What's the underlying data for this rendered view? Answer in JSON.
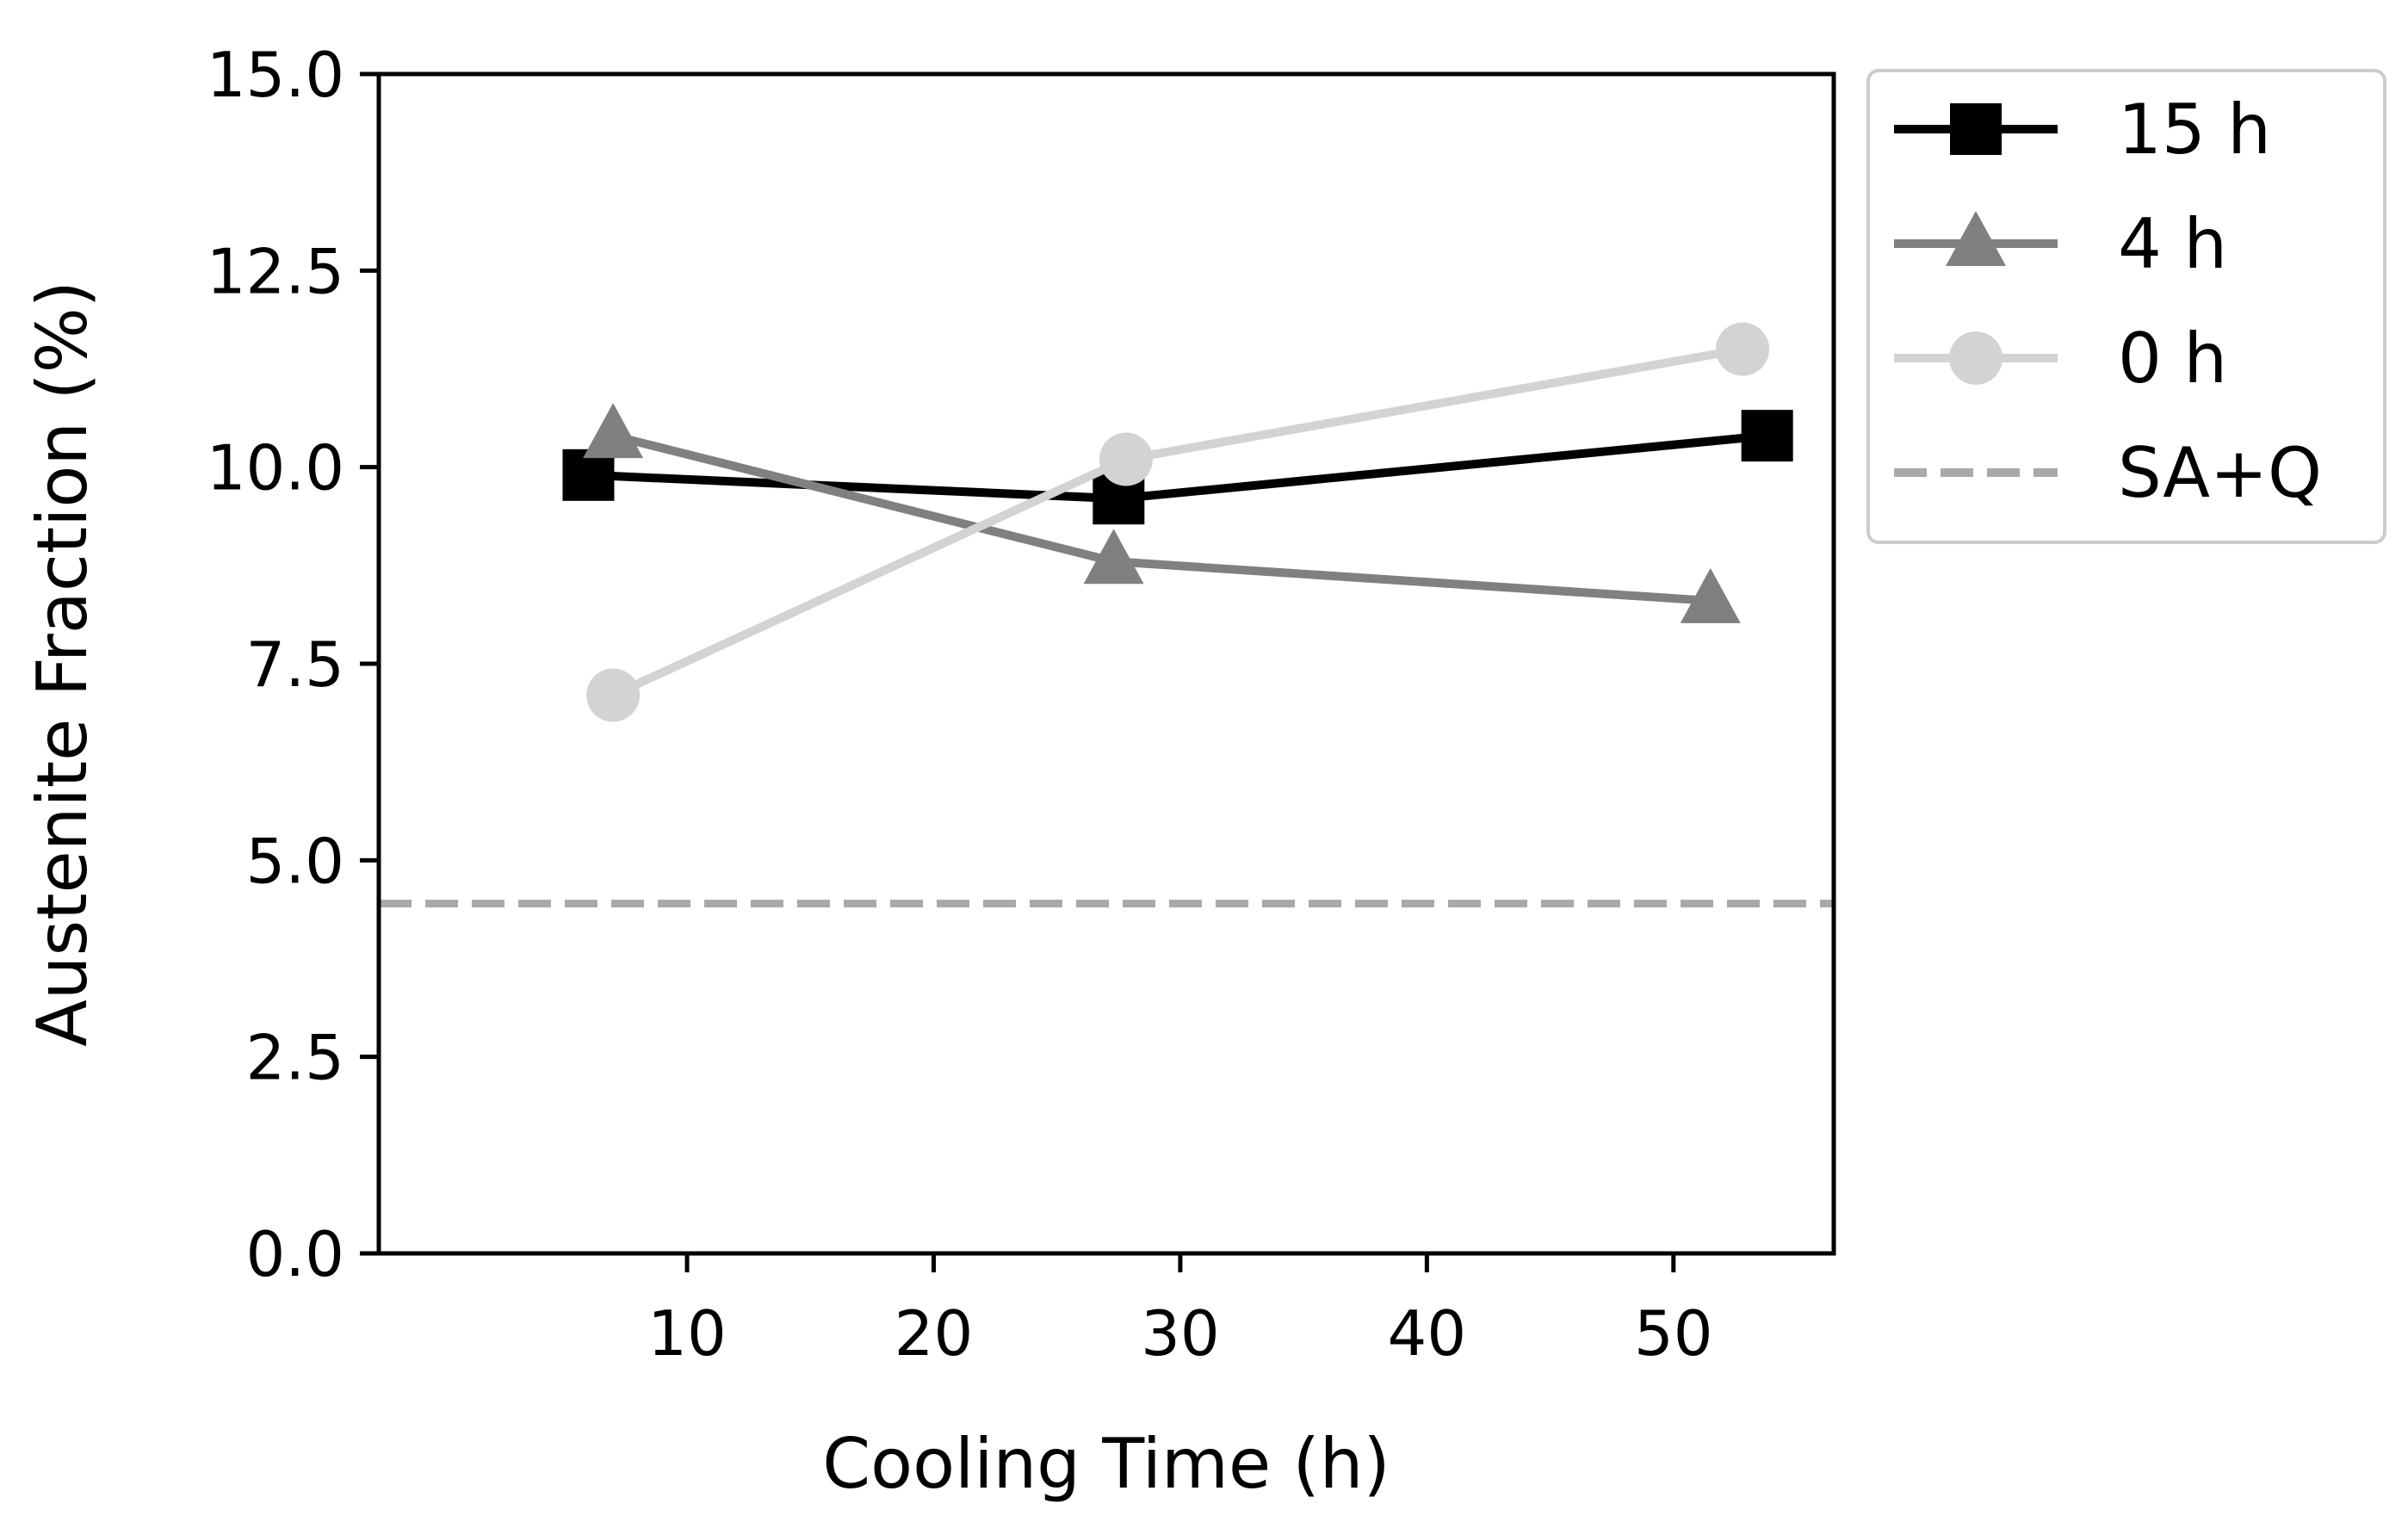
{
  "chart_data": {
    "type": "line",
    "title": "",
    "xlabel": "Cooling Time (h)",
    "ylabel": "Austenite Fraction (%)",
    "xlim": [
      -2.5,
      56.5
    ],
    "ylim": [
      0,
      15
    ],
    "xticks": [
      10,
      20,
      30,
      40,
      50
    ],
    "yticks": [
      0.0,
      2.5,
      5.0,
      7.5,
      10.0,
      12.5,
      15.0
    ],
    "xtick_labels": [
      "10",
      "20",
      "30",
      "40",
      "50"
    ],
    "ytick_labels": [
      "0.0",
      "2.5",
      "5.0",
      "7.5",
      "10.0",
      "12.5",
      "15.0"
    ],
    "grid": false,
    "legend_position": "outside-top-right",
    "series": [
      {
        "name": "15 h",
        "color": "#000000",
        "marker": "square",
        "x": [
          6.0,
          27.5,
          53.8
        ],
        "y": [
          9.9,
          9.6,
          10.4
        ]
      },
      {
        "name": "4 h",
        "color": "#808080",
        "marker": "triangle",
        "x": [
          7.0,
          27.3,
          51.5
        ],
        "y": [
          10.4,
          8.8,
          8.3
        ]
      },
      {
        "name": "0 h",
        "color": "#d3d3d3",
        "marker": "circle",
        "x": [
          7.0,
          27.8,
          52.8
        ],
        "y": [
          7.1,
          10.1,
          11.5
        ]
      }
    ],
    "reference_lines": [
      {
        "name": "SA+Q",
        "color": "#a9a9a9",
        "style": "dashed",
        "y": 4.45
      }
    ]
  }
}
